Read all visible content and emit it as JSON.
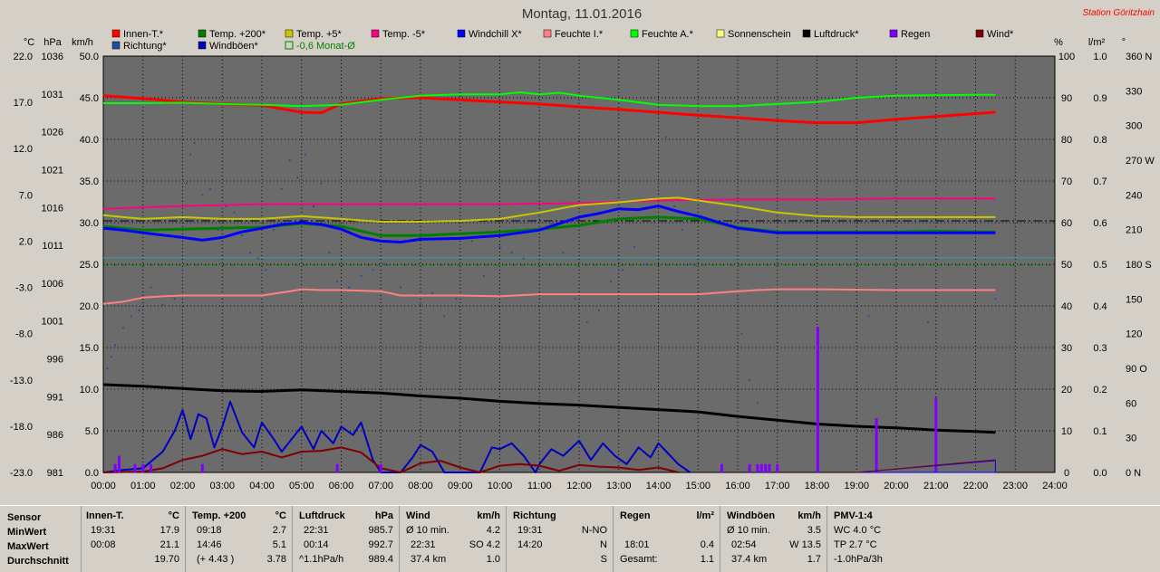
{
  "title": "Montag, 11.01.2016",
  "station": "Station Göritzhain",
  "unit_labels": {
    "celsius": "°C",
    "hpa": "hPa",
    "kmh": "km/h",
    "percent": "%",
    "lm2": "l/m²",
    "degree": "°"
  },
  "colors": {
    "bg": "#6b6b6b",
    "grid": "#000000",
    "innen": "#ff0000",
    "temp200": "#008000",
    "temp5": "#c8c800",
    "temp_5": "#ff0080",
    "windchill": "#0000ff",
    "feuchte_i": "#ff8080",
    "feuchte_a": "#00ff00",
    "sonnenschein": "#ffff80",
    "luftdruck": "#000000",
    "regen": "#8000ff",
    "wind": "#800000",
    "richtung": "#1f4fa0",
    "windboeen": "#0000c0",
    "monat": "#008000"
  },
  "legend": [
    {
      "label": "Innen-T.*",
      "color": "#ff0000"
    },
    {
      "label": "Temp. +200*",
      "color": "#008000"
    },
    {
      "label": "Temp. +5*",
      "color": "#c8c800"
    },
    {
      "label": "Temp. -5*",
      "color": "#ff0080"
    },
    {
      "label": "Windchill X*",
      "color": "#0000ff"
    },
    {
      "label": "Feuchte I.*",
      "color": "#ff8080"
    },
    {
      "label": "Feuchte A.*",
      "color": "#00ff00"
    },
    {
      "label": "Sonnenschein",
      "color": "#ffff80"
    },
    {
      "label": "Luftdruck*",
      "color": "#000000"
    },
    {
      "label": "Regen",
      "color": "#8000ff"
    },
    {
      "label": "Wind*",
      "color": "#800000"
    },
    {
      "label": "Richtung*",
      "color": "#1f4fa0"
    },
    {
      "label": "Windböen*",
      "color": "#0000c0"
    },
    {
      "label": "-0,6 Monat-Ø",
      "color": "#008000",
      "outline": true
    }
  ],
  "chart_data": {
    "type": "line",
    "title": "Montag, 11.01.2016",
    "x_ticks": [
      "00:00",
      "01:00",
      "02:00",
      "03:00",
      "04:00",
      "05:00",
      "06:00",
      "07:00",
      "08:00",
      "09:00",
      "10:00",
      "11:00",
      "12:00",
      "13:00",
      "14:00",
      "15:00",
      "16:00",
      "17:00",
      "18:00",
      "19:00",
      "20:00",
      "21:00",
      "22:00",
      "23:00",
      "24:00"
    ],
    "xlim": [
      0,
      24
    ],
    "axis_temp": {
      "ticks": [
        "22.0",
        "17.0",
        "12.0",
        "7.0",
        "2.0",
        "-3.0",
        "-8.0",
        "-13.0",
        "-18.0",
        "-23.0"
      ],
      "ylim": [
        -23,
        22
      ]
    },
    "axis_hpa": {
      "ticks": [
        "1036",
        "1031",
        "1026",
        "1021",
        "1016",
        "1011",
        "1006",
        "1001",
        "996",
        "991",
        "986",
        "981"
      ]
    },
    "axis_kmh": {
      "ticks": [
        "50.0",
        "45.0",
        "40.0",
        "35.0",
        "30.0",
        "25.0",
        "20.0",
        "15.0",
        "10.0",
        "5.0",
        "0.0"
      ],
      "ylim": [
        0,
        50
      ]
    },
    "axis_percent": {
      "ticks": [
        "100",
        "90",
        "80",
        "70",
        "60",
        "50",
        "40",
        "30",
        "20",
        "10",
        "0"
      ]
    },
    "axis_rain": {
      "ticks": [
        "1.0",
        "0.9",
        "0.8",
        "0.7",
        "0.6",
        "0.5",
        "0.4",
        "0.3",
        "0.2",
        "0.1",
        "0.0"
      ]
    },
    "axis_dir": {
      "ticks": [
        "360 N",
        "330",
        "300",
        "270 W",
        "240",
        "210",
        "180 S",
        "150",
        "120",
        "90 O",
        "60",
        "30",
        "0 N"
      ]
    },
    "series": [
      {
        "name": "Innen-T.*",
        "axis": "percent",
        "color": "#ff0000",
        "width": 3,
        "x": [
          0,
          1,
          2,
          3,
          4,
          5,
          5.5,
          6,
          7,
          8,
          9,
          10,
          11,
          12,
          13,
          14,
          15,
          16,
          17,
          18,
          19,
          20,
          21,
          22,
          22.5
        ],
        "y": [
          90.5,
          89.8,
          89,
          88.5,
          88.2,
          86.5,
          86.4,
          88.5,
          89.8,
          90,
          89.5,
          89,
          88.5,
          87.8,
          87.2,
          86.5,
          85.8,
          85.2,
          84.5,
          84,
          84,
          84.8,
          85.5,
          86.2,
          86.5
        ]
      },
      {
        "name": "Feuchte A.*",
        "axis": "percent",
        "color": "#00ff00",
        "width": 2,
        "x": [
          0,
          1,
          2,
          3,
          4,
          5,
          6,
          7,
          8,
          9,
          10,
          10.5,
          11,
          11.5,
          12,
          13,
          14,
          15,
          16,
          17,
          18,
          19,
          20,
          21,
          22,
          22.5
        ],
        "y": [
          88.7,
          88.7,
          88.8,
          88.5,
          88.3,
          88,
          88.3,
          89.5,
          90.5,
          90.8,
          90.8,
          91.3,
          90.8,
          91.2,
          90.5,
          89.5,
          88.3,
          88,
          88,
          88.5,
          89,
          90,
          90.5,
          90.6,
          90.7,
          90.7
        ]
      },
      {
        "name": "Temp. -5*",
        "axis": "temp",
        "color": "#ff0080",
        "width": 2,
        "x": [
          0,
          2,
          4,
          6,
          8,
          10,
          12,
          14,
          16,
          18,
          20,
          22,
          22.5
        ],
        "y": [
          5.5,
          5.8,
          6,
          6,
          6,
          6,
          6.1,
          6.4,
          6.5,
          6.5,
          6.6,
          6.6,
          6.6
        ]
      },
      {
        "name": "Temp. +5*",
        "axis": "temp",
        "color": "#c8c800",
        "width": 2,
        "x": [
          0,
          1,
          2,
          3,
          4,
          5,
          6,
          7,
          8,
          9,
          10,
          11,
          12,
          13,
          14,
          14.5,
          15,
          16,
          17,
          18,
          19,
          20,
          21,
          22,
          22.5
        ],
        "y": [
          4.8,
          4.4,
          4.6,
          4.4,
          4.4,
          4.7,
          4.4,
          4.1,
          4.1,
          4.2,
          4.4,
          5.1,
          5.9,
          6.2,
          6.6,
          6.7,
          6.4,
          5.8,
          5.1,
          4.7,
          4.6,
          4.6,
          4.6,
          4.6,
          4.6
        ]
      },
      {
        "name": "Temp. +200*",
        "axis": "temp",
        "color": "#008000",
        "width": 3,
        "x": [
          0,
          1,
          2,
          3,
          4,
          5,
          6,
          7,
          8,
          9,
          10,
          11,
          12,
          13,
          14,
          15,
          16,
          17,
          18,
          19,
          20,
          21,
          22,
          22.5
        ],
        "y": [
          3.6,
          3.2,
          3.3,
          3.4,
          3.5,
          3.9,
          3.6,
          2.6,
          2.6,
          2.8,
          3.0,
          3.3,
          3.7,
          4.4,
          4.6,
          4.4,
          3.5,
          3.0,
          3.0,
          3.0,
          3.0,
          3.1,
          3.0,
          3.0
        ]
      },
      {
        "name": "Windchill X*",
        "axis": "temp",
        "color": "#0000ff",
        "width": 3,
        "x": [
          0,
          0.5,
          1,
          2,
          2.5,
          3,
          3.5,
          4,
          4.5,
          5,
          5.5,
          6,
          6.5,
          7,
          7.5,
          8,
          9,
          10,
          11,
          12,
          12.5,
          13,
          13.5,
          14,
          14.5,
          15,
          16,
          17,
          18,
          19,
          20,
          21,
          22,
          22.5
        ],
        "y": [
          3.4,
          3.2,
          2.9,
          2.4,
          2.1,
          2.4,
          3.0,
          3.4,
          3.8,
          4.0,
          3.8,
          3.3,
          2.4,
          2.0,
          1.9,
          2.2,
          2.3,
          2.6,
          3.2,
          4.6,
          5.0,
          5.5,
          5.4,
          5.8,
          5.2,
          4.7,
          3.4,
          2.9,
          2.9,
          2.9,
          2.9,
          2.9,
          2.9,
          2.9
        ]
      },
      {
        "name": "Feuchte I.*",
        "axis": "percent",
        "color": "#ff8080",
        "width": 2,
        "x": [
          0,
          0.5,
          1,
          1.5,
          2,
          4,
          4.7,
          5,
          5.5,
          6,
          7,
          7.5,
          9,
          10,
          11,
          12,
          13,
          14,
          15,
          16,
          16.5,
          17,
          18,
          20,
          22,
          22.5
        ],
        "y": [
          40.5,
          41,
          42,
          42.3,
          42.5,
          42.5,
          43.5,
          44,
          43.8,
          43.8,
          43.5,
          42.5,
          42.5,
          42.3,
          42.8,
          42.8,
          42.8,
          42.8,
          42.8,
          43.5,
          43.8,
          44,
          44,
          43.8,
          43.8,
          43.8
        ]
      },
      {
        "name": "Luftdruck*",
        "axis": "hpa",
        "color": "#000000",
        "width": 3,
        "x": [
          0,
          1,
          2,
          3,
          4,
          5,
          6,
          7,
          8,
          9,
          10,
          11,
          12,
          13,
          14,
          15,
          16,
          17,
          18,
          19,
          20,
          21,
          22,
          22.5
        ],
        "y": [
          992.6,
          992.4,
          992.1,
          991.8,
          991.7,
          991.9,
          991.7,
          991.5,
          991.1,
          990.8,
          990.4,
          990.1,
          989.9,
          989.6,
          989.3,
          989.0,
          988.4,
          987.9,
          987.4,
          987.1,
          986.9,
          986.6,
          986.4,
          986.3
        ]
      },
      {
        "name": "Windböen*",
        "axis": "kmh",
        "color": "#0000c0",
        "width": 2,
        "x": [
          0,
          0.5,
          1,
          1.5,
          1.8,
          2,
          2.2,
          2.4,
          2.6,
          2.8,
          3,
          3.2,
          3.5,
          3.8,
          4,
          4.3,
          4.5,
          4.8,
          5,
          5.3,
          5.5,
          5.8,
          6,
          6.3,
          6.5,
          6.8,
          7,
          7.5,
          7.8,
          8,
          8.3,
          8.6,
          9,
          9.5,
          9.8,
          10,
          10.3,
          10.6,
          10.9,
          11,
          11.3,
          11.6,
          12,
          12.3,
          12.6,
          12.9,
          13.2,
          13.5,
          13.8,
          14,
          14.2,
          14.5,
          14.8
        ],
        "y": [
          0,
          0.3,
          0.5,
          2.5,
          5,
          7.5,
          4,
          7,
          6.5,
          3,
          5.5,
          8.5,
          4.8,
          3,
          6,
          4,
          2.5,
          4.3,
          5.5,
          2.8,
          5,
          3.5,
          5.5,
          4.5,
          6,
          1.5,
          0,
          0,
          1.8,
          3.3,
          2.5,
          0,
          0,
          0,
          3,
          2.8,
          3.5,
          2,
          0,
          1,
          2.8,
          2,
          3.8,
          1.5,
          3.5,
          2,
          1,
          3,
          1.8,
          3.5,
          2.5,
          1,
          0
        ]
      },
      {
        "name": "Wind*",
        "axis": "kmh",
        "color": "#800000",
        "width": 2,
        "x": [
          0,
          1,
          1.5,
          2,
          2.5,
          3,
          3.5,
          4,
          4.5,
          5,
          5.5,
          6,
          6.5,
          7,
          7.5,
          8,
          8.5,
          9,
          9.5,
          10,
          10.5,
          11,
          11.5,
          12,
          12.5,
          13,
          13.5,
          14,
          14.5
        ],
        "y": [
          0,
          0.1,
          0.5,
          1.5,
          2,
          2.8,
          2.2,
          2.5,
          1.8,
          2.5,
          2.6,
          3.0,
          2.4,
          0.5,
          0,
          1.1,
          1.4,
          0.6,
          0,
          0.8,
          1.0,
          0.8,
          0.2,
          0.9,
          0.7,
          0.6,
          0.3,
          0.6,
          0
        ]
      },
      {
        "name": "Regen",
        "axis": "rain",
        "color": "#8000ff",
        "type": "bar",
        "x": [
          0.3,
          0.4,
          0.8,
          1,
          1.2,
          2.5,
          5.9,
          7,
          15.6,
          16.3,
          16.5,
          16.6,
          16.7,
          16.8,
          17,
          18.02,
          19.5,
          21
        ],
        "y": [
          0.02,
          0.04,
          0.02,
          0.02,
          0.02,
          0.02,
          0.02,
          0.02,
          0.02,
          0.02,
          0.02,
          0.02,
          0.02,
          0.02,
          0.02,
          0.35,
          0.13,
          0.18
        ]
      },
      {
        "name": "Richtung*",
        "axis": "dir",
        "color": "#1f4fa0",
        "type": "scatter",
        "x": [
          0.1,
          0.2,
          0.3,
          0.5,
          0.7,
          0.9,
          1.2,
          1.5,
          1.8,
          2,
          2.1,
          2.2,
          2.3,
          2.5,
          2.7,
          2.9,
          3.1,
          3.3,
          3.5,
          3.7,
          3.9,
          4.1,
          4.3,
          4.5,
          4.7,
          4.9,
          5.1,
          5.3,
          5.5,
          5.7,
          5.9,
          6.2,
          6.5,
          6.8,
          7.1,
          7.5,
          8,
          8.3,
          8.6,
          8.9,
          9.3,
          9.6,
          10,
          10.3,
          10.6,
          11,
          11.3,
          11.6,
          11.9,
          12.2,
          12.5,
          12.8,
          13.1,
          13.4,
          13.7,
          14,
          14.2,
          14.4,
          14.6,
          14.8,
          16.1,
          16.3,
          16.5,
          19.3,
          20.8,
          22.5
        ],
        "y": [
          90,
          100,
          110,
          125,
          135,
          140,
          160,
          145,
          150,
          175,
          250,
          275,
          285,
          240,
          245,
          210,
          230,
          225,
          205,
          190,
          185,
          175,
          210,
          245,
          270,
          255,
          275,
          230,
          250,
          190,
          165,
          160,
          170,
          175,
          180,
          160,
          145,
          155,
          135,
          150,
          200,
          170,
          195,
          190,
          185,
          200,
          215,
          190,
          150,
          130,
          140,
          165,
          175,
          195,
          180,
          250,
          290,
          230,
          210,
          180,
          120,
          80,
          60,
          135,
          130,
          150
        ]
      }
    ],
    "hlines": [
      {
        "name": "-0,6 Monat-Ø",
        "axis": "temp",
        "y": -0.6,
        "color": "#008000",
        "dash": "6,4"
      },
      {
        "name": "ref-black",
        "axis": "temp",
        "y": 4.2,
        "color": "#000000",
        "dash": "10,3,2,3"
      },
      {
        "name": "ref-cyan",
        "axis": "temp",
        "y": 0.2,
        "color": "#30a0a0",
        "dash": ""
      }
    ]
  },
  "stats": {
    "sensor": {
      "h": "Sensor",
      "r1": "MinWert",
      "r2": "MaxWert",
      "r3": "Durchschnitt"
    },
    "innen": {
      "h": "Innen-T.",
      "u": "°C",
      "min_t": "19:31",
      "min_v": "17.9",
      "max_t": "00:08",
      "max_v": "21.1",
      "avg": "19.70"
    },
    "temp200": {
      "h": "Temp. +200",
      "u": "°C",
      "min_t": "09:18",
      "min_v": "2.7",
      "max_t": "14:46",
      "max_v": "5.1",
      "avg_l": "(+ 4.43 )",
      "avg": "3.78"
    },
    "luftdruck": {
      "h": "Luftdruck",
      "u": "hPa",
      "min_t": "22:31",
      "min_v": "985.7",
      "max_t": "00:14",
      "max_v": "992.7",
      "avg_l": "^1.1hPa/h",
      "avg": "989.4"
    },
    "wind": {
      "h": "Wind",
      "u": "km/h",
      "r1l": "Ø 10 min.",
      "r1v": "4.2",
      "r2l": "22:31",
      "r2v": "SO 4.2",
      "r3l": "37.4 km",
      "r3v": "1.0"
    },
    "richtung": {
      "h": "Richtung",
      "r1l": "19:31",
      "r1v": "N-NO",
      "r2l": "14:20",
      "r2v": "N",
      "r3v": "S"
    },
    "regen": {
      "h": "Regen",
      "u": "l/m²",
      "r2l": "18:01",
      "r2v": "0.4",
      "r3l": "Gesamt:",
      "r3v": "1.1"
    },
    "windboeen": {
      "h": "Windböen",
      "u": "km/h",
      "r1l": "Ø 10 min.",
      "r1v": "3.5",
      "r2l": "02:54",
      "r2v": "W 13.5",
      "r3l": "37.4 km",
      "r3v": "1.7"
    },
    "pmv": {
      "h": "PMV-1:4",
      "r1": "WC 4.0 °C",
      "r2": "TP 2.7 °C",
      "r3": "-1.0hPa/3h"
    }
  }
}
